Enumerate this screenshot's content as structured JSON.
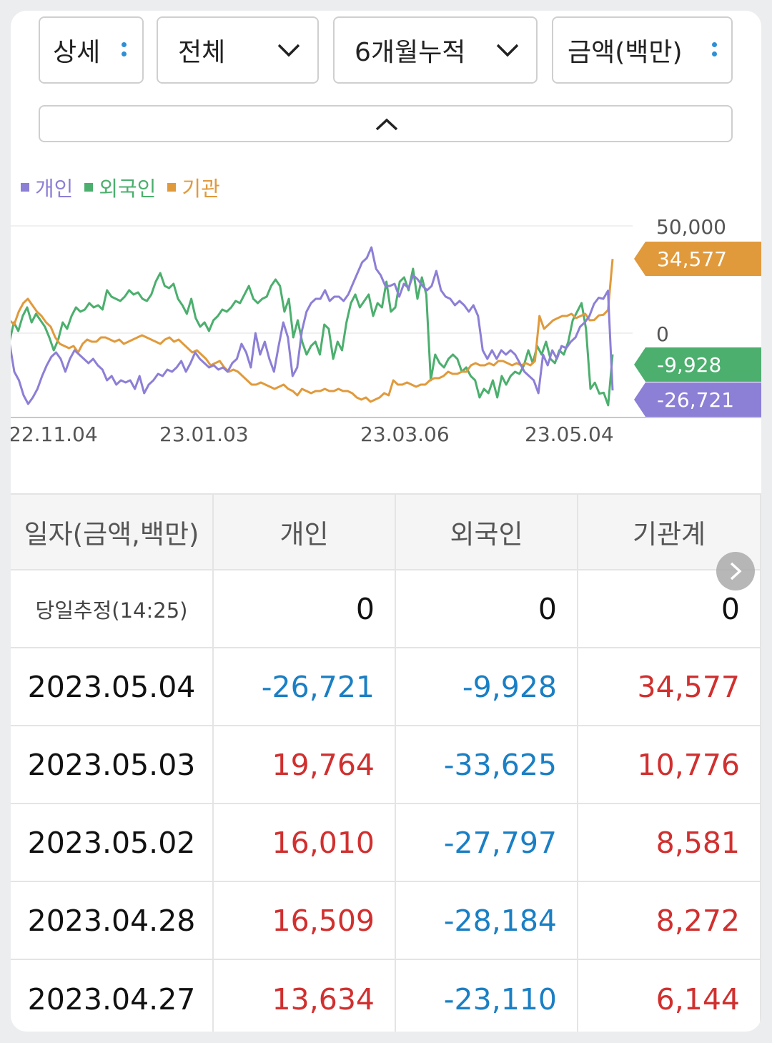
{
  "controls": {
    "detail_label": "상세",
    "scope_label": "전체",
    "period_label": "6개월누적",
    "unit_label": "금액(백만)"
  },
  "icons": {
    "more": "vertical-dots-icon",
    "dropdown": "chevron-down-icon",
    "collapse": "chevron-up-icon",
    "next": "chevron-right-icon"
  },
  "chart_data": {
    "type": "line",
    "x_ticks": [
      "22.11.04",
      "23.01.03",
      "23.03.06",
      "23.05.04"
    ],
    "y_ticks": [
      "50,000",
      "0"
    ],
    "ylim": [
      -50000,
      50000
    ],
    "series": [
      {
        "name": "개인",
        "color": "#8c7fd6",
        "last_label": "-26,721",
        "values": [
          0,
          -5000,
          -18000,
          -22000,
          -29000,
          -33000,
          -30000,
          -26000,
          -20000,
          -15000,
          -11000,
          -9000,
          -12000,
          -18000,
          -12000,
          -8000,
          -10000,
          -12000,
          -14000,
          -12000,
          -15000,
          -17000,
          -22000,
          -20000,
          -24000,
          -22000,
          -23000,
          -22000,
          -26000,
          -20000,
          -28000,
          -24000,
          -22000,
          -19000,
          -20000,
          -17000,
          -18000,
          -16000,
          -13000,
          -18000,
          -14000,
          -9000,
          -12000,
          -14000,
          -16000,
          -15000,
          -17000,
          -16000,
          -18000,
          -14000,
          -12000,
          -5000,
          -9000,
          -16000,
          0,
          -10000,
          -4000,
          -12000,
          -18000,
          -6000,
          5000,
          -2000,
          -20000,
          -16000,
          1000,
          10000,
          14000,
          16000,
          16000,
          20000,
          15000,
          17000,
          17000,
          15000,
          18000,
          23000,
          28000,
          33000,
          35000,
          40000,
          30000,
          27000,
          22000,
          22000,
          23000,
          17000,
          23000,
          21000,
          27000,
          25000,
          22000,
          20000,
          22000,
          29000,
          20000,
          17000,
          16000,
          13000,
          15000,
          13000,
          10000,
          13000,
          8000,
          -8000,
          -12000,
          -8000,
          -12000,
          -8000,
          -10000,
          -8000,
          -10000,
          -14000,
          -18000,
          -20000,
          -22000,
          -28000,
          -10000,
          -15000,
          -8000,
          -12000,
          -6000,
          -7000,
          -4000,
          -2000,
          3000,
          5000,
          8000,
          13634,
          16509,
          16010,
          19764,
          -26721
        ]
      },
      {
        "name": "외국인",
        "color": "#4caf6e",
        "last_label": "-9,928",
        "values": [
          0,
          -4000,
          5000,
          1000,
          8000,
          12000,
          5000,
          9000,
          6000,
          3000,
          -2000,
          -8000,
          -3000,
          5000,
          2000,
          8000,
          12000,
          10000,
          11000,
          14000,
          12000,
          13000,
          11000,
          20000,
          17000,
          16000,
          15000,
          17000,
          20000,
          18000,
          19000,
          16000,
          15000,
          18000,
          24000,
          28000,
          22000,
          21000,
          23000,
          16000,
          13000,
          9000,
          16000,
          7000,
          3000,
          5000,
          1000,
          6000,
          8000,
          11000,
          10000,
          12000,
          15000,
          14000,
          18000,
          22000,
          16000,
          14000,
          16000,
          17000,
          22000,
          25000,
          22000,
          10000,
          16000,
          -2000,
          6000,
          -4000,
          -10000,
          -6000,
          -4000,
          -10000,
          4000,
          2000,
          -12000,
          -4000,
          -8000,
          5000,
          14000,
          18000,
          12000,
          15000,
          18000,
          8000,
          14000,
          12000,
          24000,
          10000,
          12000,
          24000,
          26000,
          20000,
          30000,
          16000,
          26000,
          18000,
          -22000,
          -10000,
          -14000,
          -16000,
          -12000,
          -10000,
          -12000,
          -18000,
          -16000,
          -20000,
          -22000,
          -30000,
          -26000,
          -28000,
          -22000,
          -30000,
          -20000,
          -24000,
          -20000,
          -18000,
          -19000,
          -15000,
          -8000,
          -14000,
          -6000,
          -10000,
          -4000,
          -12000,
          -14000,
          -8000,
          -10000,
          -4000,
          6000,
          10000,
          14000,
          2000,
          -26000,
          -23110,
          -28184,
          -27797,
          -33625,
          -9928
        ]
      },
      {
        "name": "기관",
        "color": "#e09a3c",
        "last_label": "34,577",
        "values": [
          0,
          6000,
          4000,
          10000,
          14000,
          16000,
          13000,
          10000,
          8000,
          5000,
          3000,
          -2000,
          -5000,
          -6000,
          -7000,
          -6000,
          -9000,
          -5000,
          -3000,
          -4000,
          -4000,
          -2000,
          -2000,
          -3000,
          -4000,
          -3000,
          -5000,
          -4000,
          -3000,
          -2000,
          -1000,
          -2000,
          -3000,
          -4000,
          -5000,
          -3000,
          -2000,
          -4000,
          -3000,
          -5000,
          -7000,
          -9000,
          -8000,
          -10000,
          -12000,
          -15000,
          -14000,
          -13000,
          -16000,
          -18000,
          -17000,
          -18000,
          -20000,
          -22000,
          -24000,
          -24000,
          -23000,
          -24000,
          -25000,
          -26000,
          -25000,
          -24000,
          -26000,
          -27000,
          -29000,
          -26000,
          -27000,
          -28000,
          -27000,
          -27000,
          -26000,
          -27000,
          -27000,
          -26000,
          -27000,
          -27000,
          -28000,
          -30000,
          -31000,
          -30000,
          -32000,
          -31000,
          -30000,
          -28000,
          -29000,
          -22000,
          -24000,
          -24000,
          -23000,
          -24000,
          -25000,
          -24000,
          -24000,
          -22000,
          -21000,
          -21000,
          -20000,
          -18000,
          -19000,
          -19000,
          -18000,
          -18000,
          -15000,
          -14000,
          -15000,
          -15000,
          -14000,
          -15000,
          -13000,
          -13000,
          -14000,
          -15000,
          -14000,
          -15000,
          -14000,
          -15000,
          -13000,
          8000,
          2000,
          4000,
          6000,
          7000,
          8000,
          8000,
          9000,
          7000,
          8000,
          9000,
          6000,
          6144,
          8272,
          8581,
          10776,
          34577
        ]
      }
    ]
  },
  "table": {
    "headers": [
      "일자(금액,백만)",
      "개인",
      "외국인",
      "기관계"
    ],
    "estimate_row": {
      "label": "당일추정(14:25)",
      "values": [
        "0",
        "0",
        "0"
      ]
    },
    "rows": [
      {
        "date": "2023.05.04",
        "values": [
          "-26,721",
          "-9,928",
          "34,577"
        ]
      },
      {
        "date": "2023.05.03",
        "values": [
          "19,764",
          "-33,625",
          "10,776"
        ]
      },
      {
        "date": "2023.05.02",
        "values": [
          "16,010",
          "-27,797",
          "8,581"
        ]
      },
      {
        "date": "2023.04.28",
        "values": [
          "16,509",
          "-28,184",
          "8,272"
        ]
      },
      {
        "date": "2023.04.27",
        "values": [
          "13,634",
          "-23,110",
          "6,144"
        ]
      }
    ]
  }
}
